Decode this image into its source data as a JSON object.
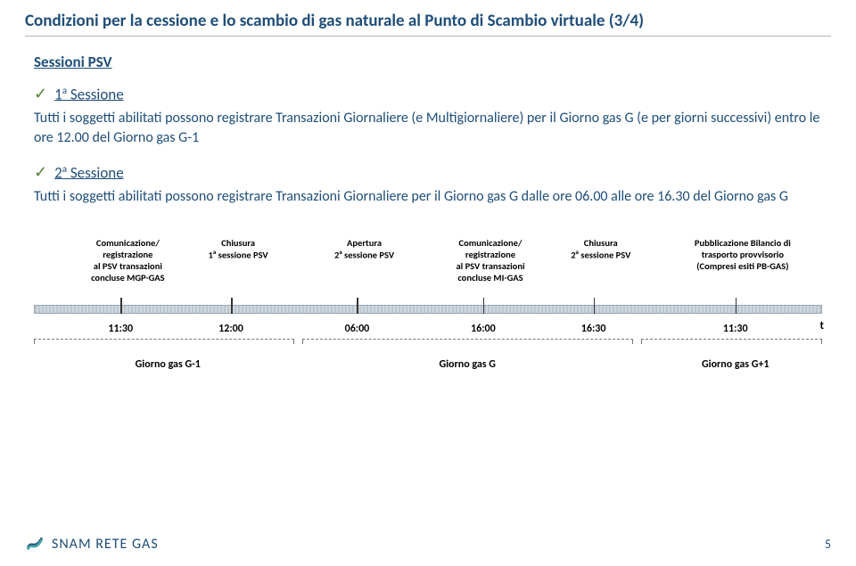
{
  "title": "Condizioni per la cessione e lo scambio di gas naturale al Punto di Scambio virtuale (3/4)",
  "section_heading": "Sessioni PSV",
  "session1": {
    "label_html": "1<sup>a</sup> Sessione",
    "body": "Tutti i soggetti abilitati possono registrare Transazioni Giornaliere (e Multigiornaliere) per il Giorno gas G (e per giorni successivi) entro le ore 12.00 del Giorno gas G-1"
  },
  "session2": {
    "label_html": "2<sup>a</sup> Sessione",
    "body": "Tutti i soggetti abilitati possono registrare Transazioni Giornaliere per il Giorno gas G dalle ore 06.00 alle ore 16.30 del Giorno gas G"
  },
  "timeline": {
    "labels": [
      {
        "html": "Comunicazione/<br>registrazione<br>al PSV transazioni<br>concluse MGP-GAS",
        "left_pct": 4
      },
      {
        "html": "Chiusura<br>1<sup>a</sup> sessione PSV",
        "left_pct": 18
      },
      {
        "html": "Apertura<br>2<sup>a</sup> sessione PSV",
        "left_pct": 34
      },
      {
        "html": "Comunicazione/<br>registrazione<br>al PSV transazioni<br>concluse MI-GAS",
        "left_pct": 50
      },
      {
        "html": "Chiusura<br>2<sup>a</sup> sessione PSV",
        "left_pct": 64
      },
      {
        "html": "Pubblicazione Bilancio di<br>trasporto provvisorio<br>(Compresi esiti PB-GAS)",
        "left_pct": 82
      }
    ],
    "ticks_pct": [
      11,
      25,
      41,
      57,
      71,
      89
    ],
    "times": [
      {
        "text": "11:30",
        "left_pct": 11
      },
      {
        "text": "12:00",
        "left_pct": 25
      },
      {
        "text": "06:00",
        "left_pct": 41
      },
      {
        "text": "16:00",
        "left_pct": 57
      },
      {
        "text": "16:30",
        "left_pct": 71
      },
      {
        "text": "11:30",
        "left_pct": 89
      }
    ],
    "t_label": "t",
    "days": [
      {
        "label": "Giorno gas G-1",
        "center_pct": 17,
        "left_pct": 0,
        "right_pct": 33
      },
      {
        "label": "Giorno gas G",
        "center_pct": 55,
        "left_pct": 34,
        "right_pct": 76
      },
      {
        "label": "Giorno gas G+1",
        "center_pct": 89,
        "left_pct": 77,
        "right_pct": 100
      }
    ]
  },
  "footer": {
    "logo_text": "SNAM RETE GAS",
    "page_number": "5",
    "logo_colors": {
      "blue": "#1f4e79",
      "teal": "#4aa6a6"
    }
  }
}
